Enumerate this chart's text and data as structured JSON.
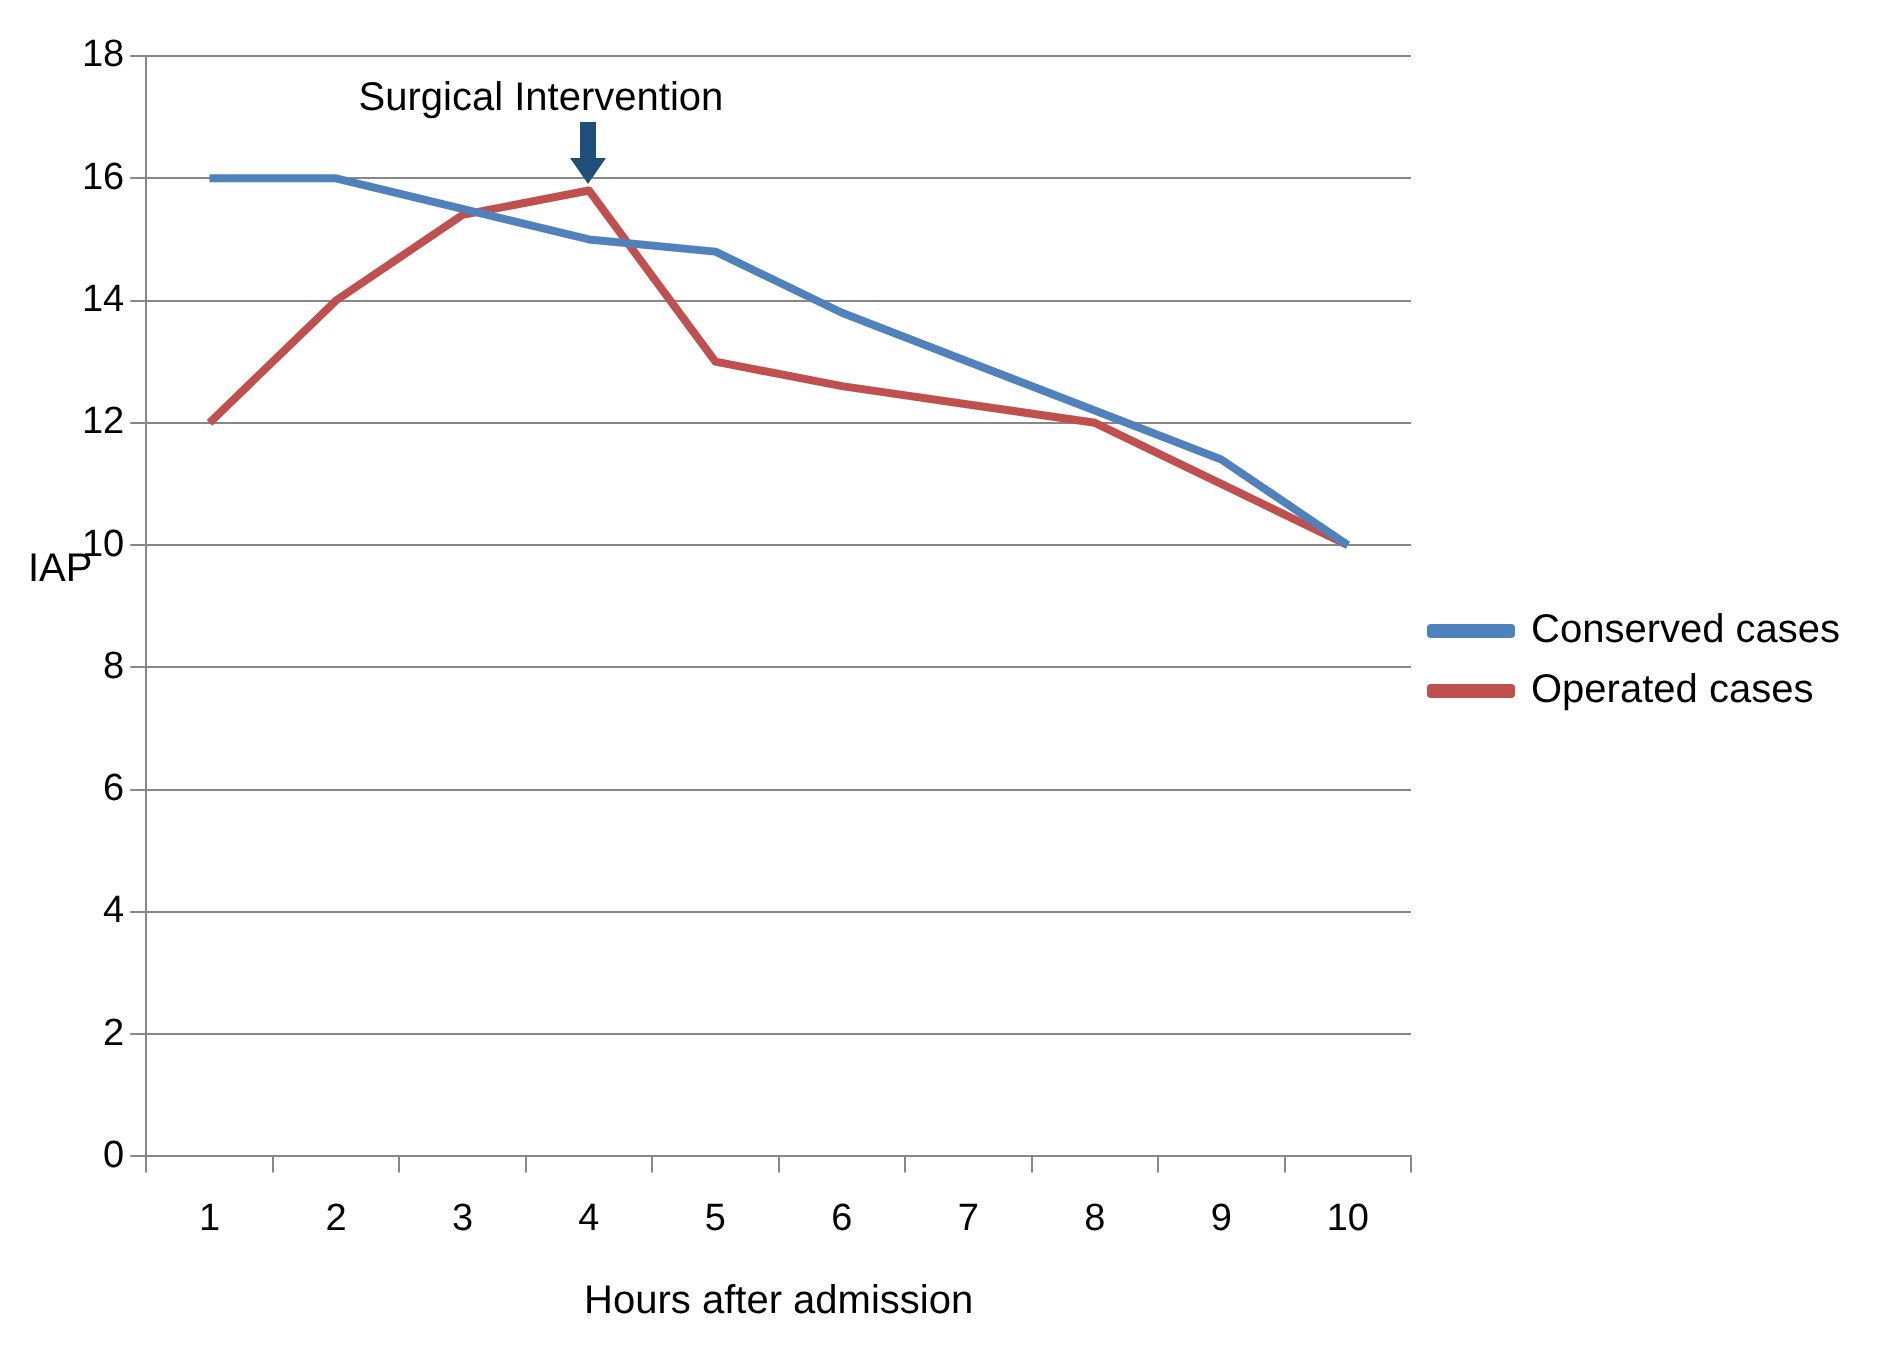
{
  "chart_data": {
    "type": "line",
    "xlabel": "Hours after admission",
    "ylabel": "IAP",
    "categories": [
      "1",
      "2",
      "3",
      "4",
      "5",
      "6",
      "7",
      "8",
      "9",
      "10"
    ],
    "series": [
      {
        "name": "Conserved cases",
        "color": "#4f81bd",
        "values": [
          16,
          16,
          15.5,
          15,
          14.8,
          13.8,
          13,
          12.2,
          11.4,
          10
        ]
      },
      {
        "name": "Operated cases",
        "color": "#c0504d",
        "values": [
          12,
          14,
          15.4,
          15.8,
          13,
          12.6,
          12.3,
          12,
          11,
          10
        ]
      }
    ],
    "ylim": [
      0,
      18
    ],
    "yticks": [
      0,
      2,
      4,
      6,
      8,
      10,
      12,
      14,
      16,
      18
    ],
    "grid": "y",
    "legend": "right",
    "marker": "none",
    "annotations": [
      {
        "text": "Surgical Intervention",
        "x": "4",
        "y": 15.8
      }
    ]
  }
}
